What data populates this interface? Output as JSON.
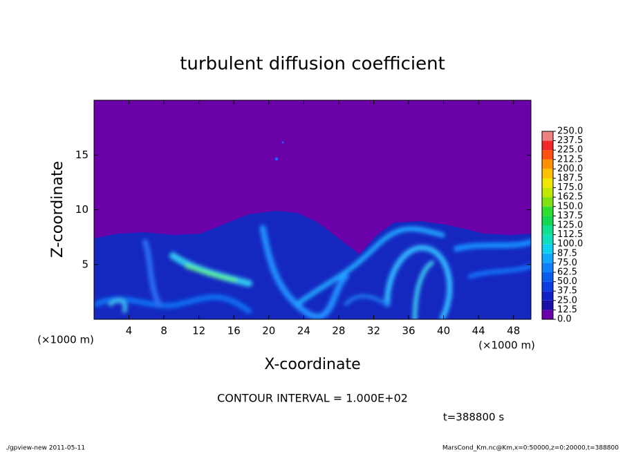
{
  "chart_data": {
    "type": "heatmap",
    "title": "turbulent diffusion coefficient",
    "x_label": "X-coordinate",
    "y_label": "Z-coordinate",
    "x_unit": "(×1000 m)",
    "y_unit": "(×1000 m)",
    "xlim": [
      0,
      50
    ],
    "xticks": [
      4,
      8,
      12,
      16,
      20,
      24,
      28,
      32,
      36,
      40,
      44,
      48
    ],
    "ylim": [
      0,
      20
    ],
    "yticks": [
      5,
      10,
      15
    ],
    "levels": [
      {
        "value": 0,
        "label": "0.0"
      },
      12.5,
      {
        "value": 25,
        "label": "25.0"
      },
      37.5,
      {
        "value": 50,
        "label": "50.0"
      },
      62.5,
      {
        "value": 75,
        "label": "75.0"
      },
      87.5,
      {
        "value": 100,
        "label": "100.0"
      },
      112.5,
      {
        "value": 125,
        "label": "125.0"
      },
      137.5,
      {
        "value": 150,
        "label": "150.0"
      },
      162.5,
      {
        "value": 175,
        "label": "175.0"
      },
      187.5,
      {
        "value": 200,
        "label": "200.0"
      },
      212.5,
      {
        "value": 225,
        "label": "225.0"
      },
      237.5,
      {
        "value": 250,
        "label": "250.0"
      }
    ],
    "colors": [
      "#6a00a8",
      "#1a10a8",
      "#1020c8",
      "#0a3ce0",
      "#0a5cf0",
      "#1080ff",
      "#10a8ff",
      "#10d0f0",
      "#10e0c0",
      "#10e090",
      "#10d850",
      "#30e030",
      "#80e010",
      "#c0e800",
      "#f0e800",
      "#ffc000",
      "#ff9000",
      "#ff5010",
      "#f02828",
      "#f08080"
    ],
    "contour_interval": "CONTOUR INTERVAL = 1.000E+02",
    "time": "t=388800 s",
    "footer_left": "./gpview-new   2011-05-11",
    "footer_right": "MarsCond_Km.nc@Km,x=0:50000,z=0:20000,t=388800"
  }
}
